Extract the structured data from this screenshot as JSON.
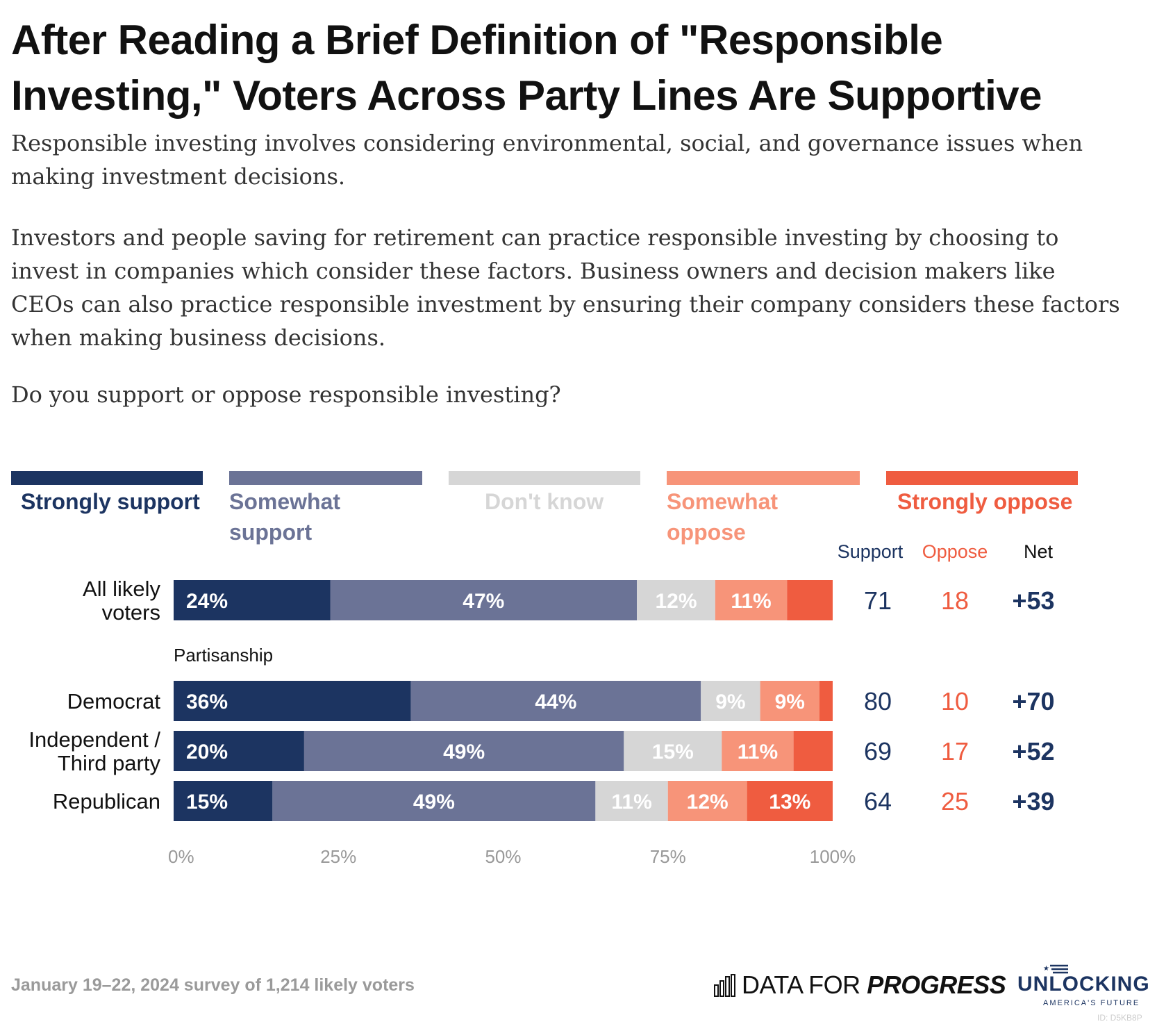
{
  "title": "After Reading a Brief Definition of \"Responsible Investing,\" Voters Across Party Lines Are Supportive",
  "subtitle_p1": "Responsible investing involves considering environmental, social, and governance issues when making investment decisions.",
  "subtitle_p2": "Investors and people saving for retirement can practice responsible investing by choosing to invest in companies which consider these factors. Business owners and decision makers like CEOs can also practice responsible investment by ensuring their company considers these factors when making business decisions.",
  "subtitle_p3": "Do you support or oppose responsible investing?",
  "legend": [
    {
      "label": "Strongly support",
      "color": "#1c3461"
    },
    {
      "label": "Somewhat support",
      "color": "#6b7396"
    },
    {
      "label": "Don't know",
      "color": "#d6d6d6"
    },
    {
      "label": "Somewhat oppose",
      "color": "#f79479"
    },
    {
      "label": "Strongly oppose",
      "color": "#ef5c40"
    }
  ],
  "chart_data": {
    "type": "bar",
    "orientation": "horizontal",
    "stacked": true,
    "categories": [
      "All likely voters",
      "Democrat",
      "Independent / Third party",
      "Republican"
    ],
    "group_label": "Partisanship",
    "series": [
      {
        "name": "Strongly support",
        "values": [
          24,
          36,
          20,
          15
        ]
      },
      {
        "name": "Somewhat support",
        "values": [
          47,
          44,
          49,
          49
        ]
      },
      {
        "name": "Don't know",
        "values": [
          12,
          9,
          15,
          11
        ]
      },
      {
        "name": "Somewhat oppose",
        "values": [
          11,
          9,
          11,
          12
        ]
      },
      {
        "name": "Strongly oppose",
        "values": [
          7,
          2,
          6,
          13
        ]
      }
    ],
    "x_ticks": [
      "0%",
      "25%",
      "50%",
      "75%",
      "100%"
    ],
    "xlim": [
      0,
      100
    ],
    "summary_headers": [
      "Support",
      "Oppose",
      "Net"
    ],
    "summary": [
      {
        "support": "71",
        "oppose": "18",
        "net": "+53"
      },
      {
        "support": "80",
        "oppose": "10",
        "net": "+70"
      },
      {
        "support": "69",
        "oppose": "17",
        "net": "+52"
      },
      {
        "support": "64",
        "oppose": "25",
        "net": "+39"
      }
    ]
  },
  "footer": {
    "source": "January 19–22, 2024 survey of 1,214 likely voters",
    "brand_plain": "DATA FOR ",
    "brand_bold": "PROGRESS",
    "partner": "UNLOCKING",
    "partner_sub": "AMERICA'S FUTURE",
    "id": "ID: D5KB8P"
  }
}
